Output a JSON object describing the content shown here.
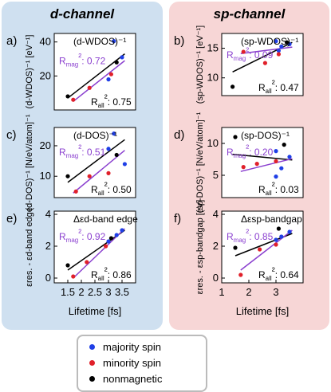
{
  "columns": {
    "left_title": "d-channel",
    "right_title": "sp-channel"
  },
  "legend": {
    "items": [
      {
        "label": "majority spin",
        "color": "#1f3fe6"
      },
      {
        "label": "minority spin",
        "color": "#e0202a"
      },
      {
        "label": "nonmagnetic",
        "color": "#000000"
      }
    ]
  },
  "colors": {
    "fit_all": "#000000",
    "fit_mag": "#8a3fcf",
    "mag_text": "#8a3fcf"
  },
  "chart_data": [
    {
      "id": "a",
      "type": "scatter",
      "panel_letter": "a)",
      "ylabel": "(d-WDOS)⁻¹ [eV⁻¹]",
      "xlabel": "",
      "xlim": [
        1,
        4
      ],
      "ylim": [
        0,
        45
      ],
      "yticks": [
        "20",
        "40"
      ],
      "ytick_values": [
        20,
        40
      ],
      "xticks": [],
      "annotation": "(d-WDOS)⁻¹",
      "r_mag": "R_mag²: 0.72",
      "r_all": "R_all²: 0.75",
      "series": [
        {
          "name": "majority spin",
          "points": [
            [
              3.2,
              40.5
            ],
            [
              3.5,
              31
            ],
            [
              3.0,
              18
            ]
          ]
        },
        {
          "name": "minority spin",
          "points": [
            [
              1.7,
              6
            ],
            [
              2.3,
              13
            ],
            [
              3.1,
              21
            ]
          ]
        },
        {
          "name": "nonmagnetic",
          "points": [
            [
              1.5,
              8
            ],
            [
              3.3,
              28
            ]
          ]
        }
      ],
      "fit_all": [
        [
          1.5,
          7
        ],
        [
          3.6,
          33
        ]
      ],
      "fit_mag": [
        [
          1.7,
          5
        ],
        [
          3.6,
          29
        ]
      ]
    },
    {
      "id": "b",
      "type": "scatter",
      "panel_letter": "b)",
      "ylabel": "(sp-WDOS)⁻¹ [eV⁻¹]",
      "xlabel": "",
      "xlim": [
        1,
        4
      ],
      "ylim": [
        7,
        17.5
      ],
      "yticks": [
        "10",
        "15"
      ],
      "ytick_values": [
        10,
        15
      ],
      "xticks": [],
      "annotation": "(sp-WDOS)⁻¹",
      "r_mag": "R_mag²: 0.09",
      "r_all": "R_all²: 0.47",
      "series": [
        {
          "name": "majority spin",
          "points": [
            [
              3.0,
              16.2
            ],
            [
              3.5,
              15.7
            ],
            [
              3.1,
              14.6
            ],
            [
              3.2,
              15.3
            ]
          ]
        },
        {
          "name": "minority spin",
          "points": [
            [
              1.8,
              14.4
            ],
            [
              2.6,
              12.5
            ],
            [
              3.1,
              14.0
            ]
          ]
        },
        {
          "name": "nonmagnetic",
          "points": [
            [
              1.4,
              8.5
            ],
            [
              3.4,
              16.0
            ]
          ]
        }
      ],
      "fit_all": [
        [
          1.4,
          11.0
        ],
        [
          3.6,
          16.0
        ]
      ],
      "fit_mag": [
        [
          1.7,
          14.1
        ],
        [
          3.6,
          15.2
        ]
      ]
    },
    {
      "id": "c",
      "type": "scatter",
      "panel_letter": "c)",
      "ylabel": "(d-DOS)⁻¹ [N/eV/atom]⁻¹",
      "xlabel": "",
      "xlim": [
        1,
        4
      ],
      "ylim": [
        3,
        26
      ],
      "yticks": [
        "10",
        "20"
      ],
      "ytick_values": [
        10,
        20
      ],
      "xticks": [],
      "annotation": "(d-DOS)⁻¹",
      "r_mag": "R_mag²: 0.51",
      "r_all": "R_all²: 0.50",
      "series": [
        {
          "name": "majority spin",
          "points": [
            [
              3.2,
              24
            ],
            [
              3.6,
              14
            ],
            [
              3.0,
              19
            ]
          ]
        },
        {
          "name": "minority spin",
          "points": [
            [
              1.8,
              5
            ],
            [
              2.3,
              10
            ],
            [
              3.0,
              11
            ]
          ]
        },
        {
          "name": "nonmagnetic",
          "points": [
            [
              1.5,
              10
            ],
            [
              3.3,
              17
            ]
          ]
        }
      ],
      "fit_all": [
        [
          1.5,
          8
        ],
        [
          3.6,
          22
        ]
      ],
      "fit_mag": [
        [
          1.7,
          4.5
        ],
        [
          3.6,
          18.5
        ]
      ]
    },
    {
      "id": "d",
      "type": "scatter",
      "panel_letter": "d)",
      "ylabel": "(sp-DOS)⁻¹ [N/eV/atom]⁻¹",
      "xlabel": "",
      "xlim": [
        1,
        4
      ],
      "ylim": [
        1.5,
        12.5
      ],
      "yticks": [
        "5",
        "10"
      ],
      "ytick_values": [
        5,
        10
      ],
      "xticks": [],
      "annotation": "(sp-DOS)⁻¹",
      "r_mag": "R_mag²: 0.20",
      "r_all": "R_all²: 0.03",
      "series": [
        {
          "name": "majority spin",
          "points": [
            [
              3.0,
              8.8
            ],
            [
              3.2,
              6.1
            ],
            [
              3.5,
              7.9
            ],
            [
              3.0,
              4.8
            ]
          ]
        },
        {
          "name": "minority spin",
          "points": [
            [
              1.8,
              6.3
            ],
            [
              2.3,
              6.8
            ],
            [
              3.0,
              7.2
            ]
          ]
        },
        {
          "name": "nonmagnetic",
          "points": [
            [
              1.5,
              11.0
            ],
            [
              3.3,
              9.8
            ]
          ]
        }
      ],
      "fit_all": [
        [
          1.4,
          8.3
        ],
        [
          3.6,
          7.4
        ]
      ],
      "fit_mag": [
        [
          1.7,
          5.6
        ],
        [
          3.6,
          7.6
        ]
      ]
    },
    {
      "id": "e",
      "type": "scatter",
      "panel_letter": "e)",
      "ylabel": "εres. - εd-band edge",
      "xlabel": "Lifetime [fs]",
      "xlim": [
        1,
        4
      ],
      "ylim": [
        -0.3,
        4.2
      ],
      "yticks": [
        "0",
        "2",
        "4"
      ],
      "ytick_values": [
        0,
        2,
        4
      ],
      "xticks": [
        "1.5",
        "2",
        "2.5",
        "3",
        "3.5"
      ],
      "xtick_values": [
        1.5,
        2,
        2.5,
        3,
        3.5
      ],
      "annotation": "Δεd-band edge",
      "r_mag": "R_mag²: 0.92",
      "r_all": "R_all²: 0.86",
      "series": [
        {
          "name": "majority spin",
          "points": [
            [
              3.3,
              2.7
            ],
            [
              3.5,
              3.0
            ],
            [
              3.0,
              2.3
            ]
          ]
        },
        {
          "name": "minority spin",
          "points": [
            [
              1.7,
              0.1
            ],
            [
              2.2,
              1.0
            ],
            [
              2.9,
              2.0
            ]
          ]
        },
        {
          "name": "nonmagnetic",
          "points": [
            [
              1.5,
              0.8
            ],
            [
              3.1,
              2.5
            ]
          ]
        }
      ],
      "fit_all": [
        [
          1.5,
          0.5
        ],
        [
          3.6,
          3.0
        ]
      ],
      "fit_mag": [
        [
          1.7,
          0.0
        ],
        [
          3.6,
          3.1
        ]
      ]
    },
    {
      "id": "f",
      "type": "scatter",
      "panel_letter": "f)",
      "ylabel": "εres. - εsp-bandgap [eV]",
      "xlabel": "Lifetime [fs]",
      "xlim": [
        1,
        4
      ],
      "ylim": [
        -0.3,
        4.2
      ],
      "yticks": [
        "0",
        "2",
        "4"
      ],
      "ytick_values": [
        0,
        2,
        4
      ],
      "xticks": [
        "1",
        "2",
        "3"
      ],
      "xtick_values": [
        1,
        2,
        3
      ],
      "annotation": "Δεsp-bandgap",
      "r_mag": "R_mag²: 0.85",
      "r_all": "R_all²: 0.64",
      "series": [
        {
          "name": "majority spin",
          "points": [
            [
              3.2,
              2.6
            ],
            [
              3.5,
              2.9
            ],
            [
              3.0,
              2.4
            ]
          ]
        },
        {
          "name": "minority spin",
          "points": [
            [
              1.7,
              0.2
            ],
            [
              2.4,
              1.8
            ],
            [
              3.0,
              2.1
            ]
          ]
        },
        {
          "name": "nonmagnetic",
          "points": [
            [
              1.5,
              1.9
            ],
            [
              3.1,
              3.1
            ]
          ]
        }
      ],
      "fit_all": [
        [
          1.5,
          1.4
        ],
        [
          3.6,
          2.8
        ]
      ],
      "fit_mag": [
        [
          1.7,
          0.5
        ],
        [
          3.6,
          3.0
        ]
      ]
    }
  ]
}
